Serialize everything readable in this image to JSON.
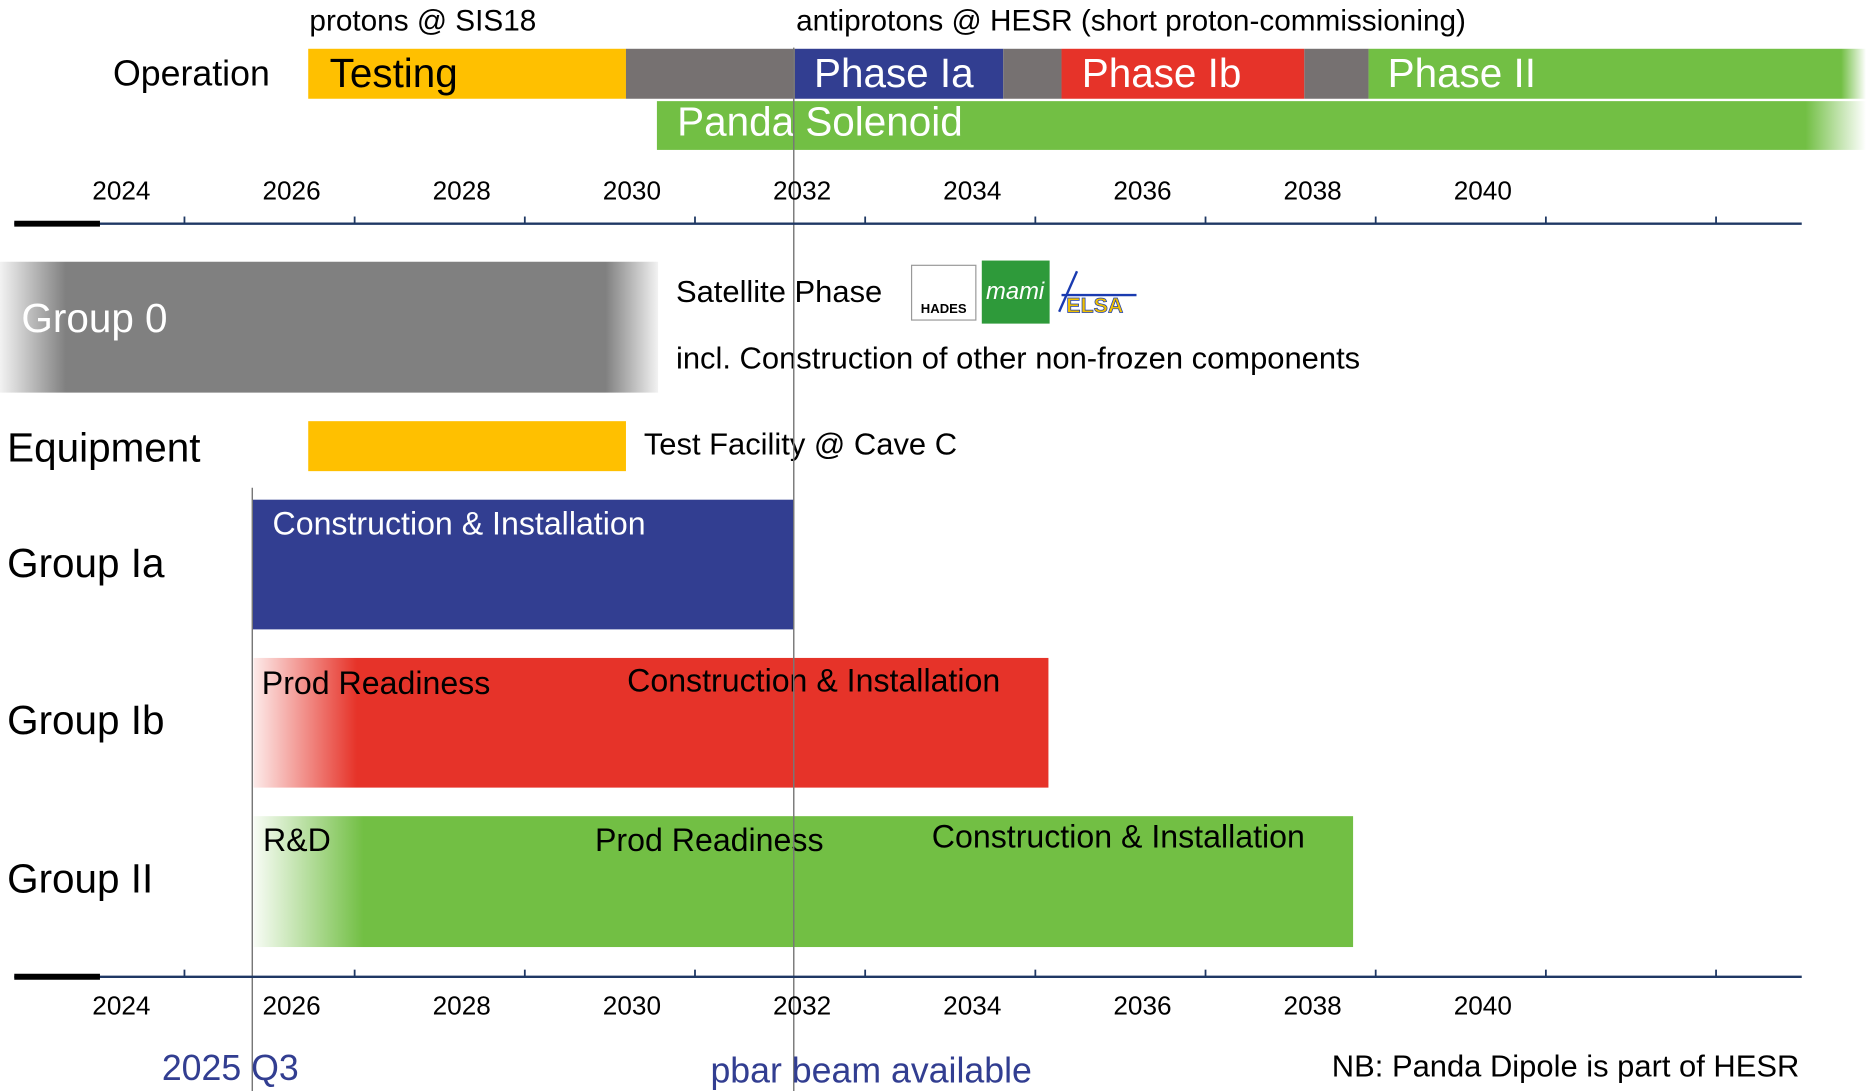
{
  "operation": {
    "label": "Operation",
    "protons_note": "protons @ SIS18",
    "antiprotons_note": "antiprotons @ HESR (short proton-commissioning)",
    "phases": [
      "Testing",
      "Phase Ia",
      "Phase Ib",
      "Phase II"
    ],
    "solenoid": "Panda Solenoid"
  },
  "axis_years": [
    2024,
    2026,
    2028,
    2030,
    2032,
    2034,
    2036,
    2038,
    2040
  ],
  "group0": {
    "label": "Group 0",
    "satellite": "Satellite Phase",
    "logos": [
      "HADES",
      "mami",
      "ELSA"
    ],
    "note": "incl. Construction of other non-frozen components"
  },
  "equipment": {
    "label": "Equipment",
    "note": "Test Facility @ Cave C"
  },
  "group_ia": {
    "label": "Group Ia",
    "phases": [
      "Construction & Installation"
    ]
  },
  "group_ib": {
    "label": "Group Ib",
    "phases": [
      "Prod Readiness",
      "Construction & Installation"
    ]
  },
  "group_ii": {
    "label": "Group II",
    "phases": [
      "R&D",
      "Prod Readiness",
      "Construction & Installation"
    ]
  },
  "markers": [
    "2025 Q3",
    "pbar beam available"
  ],
  "footnote": "NB: Panda Dipole is part of HESR"
}
